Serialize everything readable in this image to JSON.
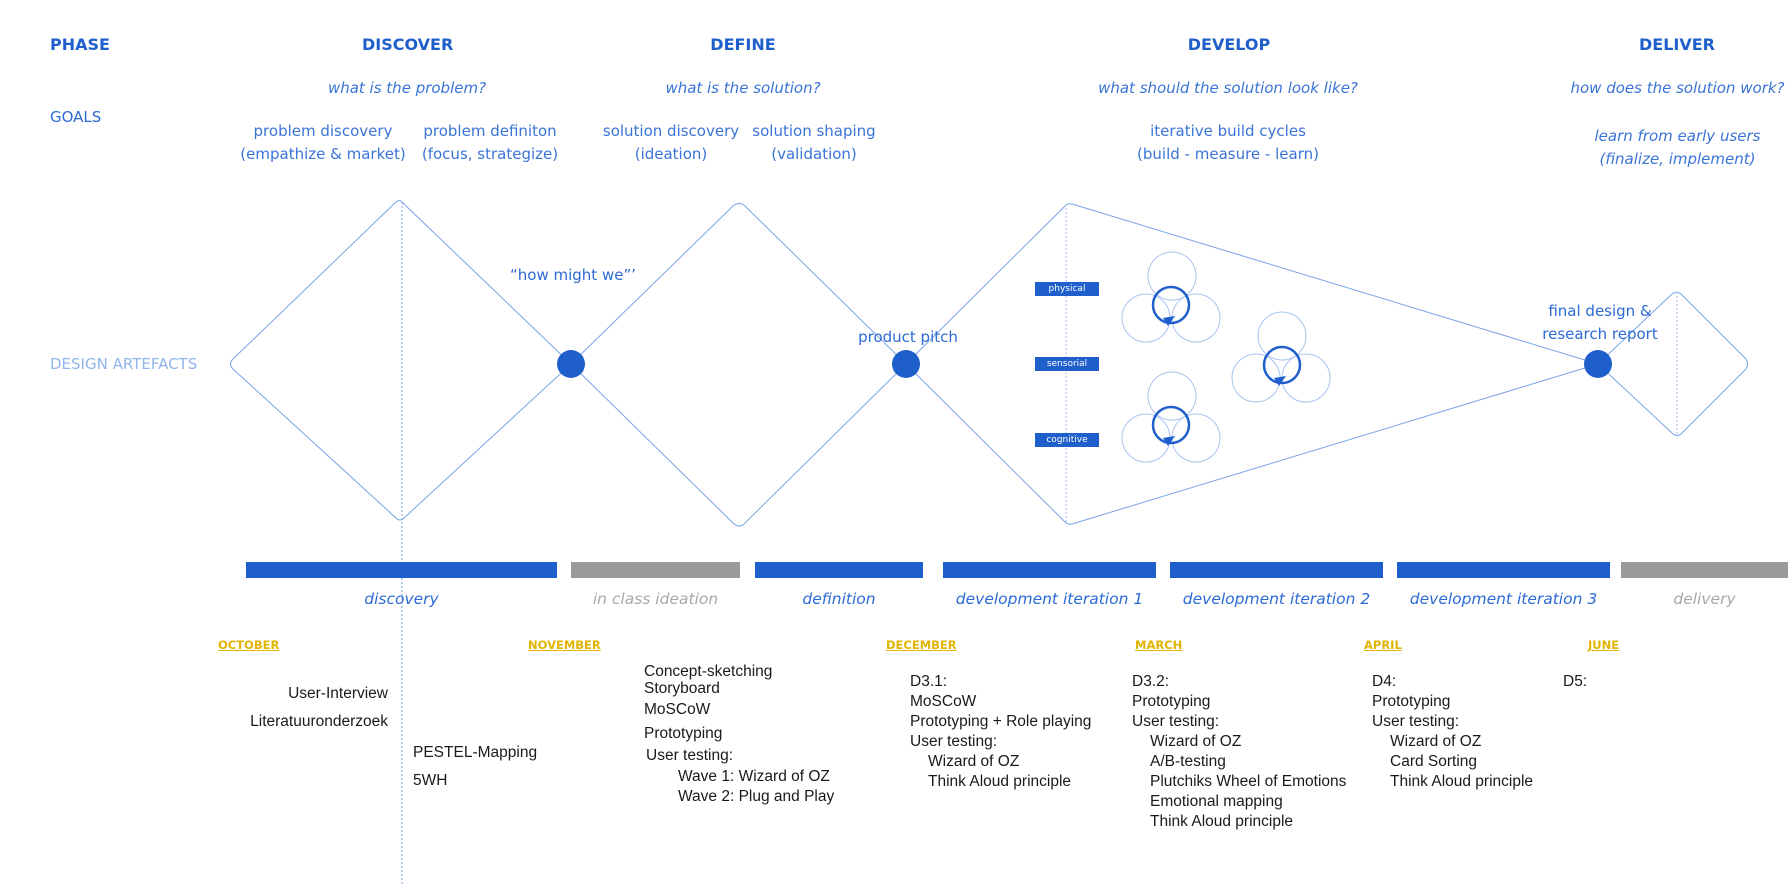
{
  "row_labels": {
    "phase": "PHASE",
    "goals": "GOALS",
    "artefacts": "DESIGN ARTEFACTS"
  },
  "phases": {
    "discover": {
      "title": "DISCOVER",
      "question": "what is the problem?",
      "goal_left": [
        "problem discovery",
        "(empathize & market)"
      ],
      "goal_right": [
        "problem definiton",
        "(focus, strategize)"
      ]
    },
    "define": {
      "title": "DEFINE",
      "question": "what is the solution?",
      "goal_left": [
        "solution discovery",
        "(ideation)"
      ],
      "goal_right": [
        "solution shaping",
        "(validation)"
      ]
    },
    "develop": {
      "title": "DEVELOP",
      "question": "what should the solution look like?",
      "goal": [
        "iterative build cycles",
        "(build - measure - learn)"
      ]
    },
    "deliver": {
      "title": "DELIVER",
      "question": "how does the solution work?",
      "goal": [
        "learn from early users",
        "(finalize, implement)"
      ]
    }
  },
  "milestones": {
    "hmw": "“how might we”’",
    "pitch": "product pitch",
    "final": [
      "final design &",
      "research report"
    ]
  },
  "develop_tags": [
    "physical",
    "sensorial",
    "cognitive"
  ],
  "timeline": [
    {
      "label": "discovery",
      "style": "blue"
    },
    {
      "label": "in class ideation",
      "style": "grey"
    },
    {
      "label": "definition",
      "style": "blue"
    },
    {
      "label": "development iteration 1",
      "style": "blue"
    },
    {
      "label": "development iteration 2",
      "style": "blue"
    },
    {
      "label": "development iteration 3",
      "style": "blue"
    },
    {
      "label": "delivery",
      "style": "grey"
    }
  ],
  "months": [
    "OCTOBER",
    "NOVEMBER",
    "DECEMBER",
    "MARCH",
    "APRIL",
    "JUNE"
  ],
  "methods": {
    "discovery_a": [
      "User-Interview",
      "Literatuuronderzoek"
    ],
    "discovery_b": [
      "PESTEL-Mapping",
      "5WH"
    ],
    "ideation": {
      "lines": [
        "Concept-sketching",
        "Storyboard",
        "MoSCoW",
        "Prototyping",
        "User testing:"
      ],
      "sub": [
        "Wave 1: Wizard of OZ",
        "Wave 2: Plug and Play"
      ]
    },
    "d31": {
      "lines": [
        "D3.1:",
        "MoSCoW",
        "Prototyping + Role playing",
        "User testing:"
      ],
      "sub": [
        "Wizard of OZ",
        "Think Aloud principle"
      ]
    },
    "d32": {
      "lines": [
        "D3.2:",
        "Prototyping",
        "User testing:"
      ],
      "sub": [
        "Wizard of OZ",
        "A/B-testing",
        "Plutchiks Wheel of Emotions",
        "Emotional mapping",
        "Think Aloud principle"
      ]
    },
    "d4": {
      "lines": [
        "D4:",
        "Prototyping",
        "User testing:"
      ],
      "sub": [
        "Wizard of OZ",
        "Card Sorting",
        "Think Aloud principle"
      ]
    },
    "d5": {
      "lines": [
        "D5:"
      ]
    }
  },
  "colors": {
    "accent": "#1f5fcc",
    "line": "#6f9be4",
    "grey": "#9a9a9a",
    "month": "#e0b400"
  }
}
